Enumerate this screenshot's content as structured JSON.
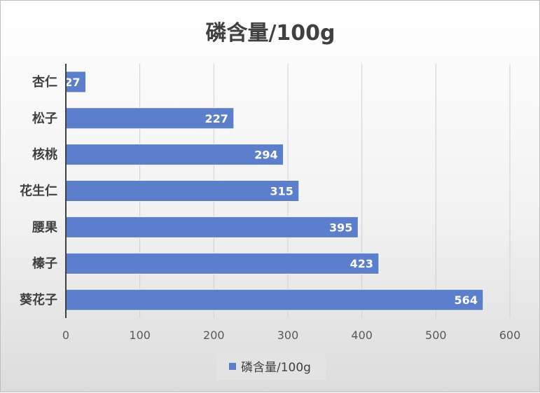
{
  "chart_data": {
    "type": "bar",
    "orientation": "horizontal",
    "title": "磷含量/100g",
    "categories": [
      "杏仁",
      "松子",
      "核桃",
      "花生仁",
      "腰果",
      "榛子",
      "葵花子"
    ],
    "series": [
      {
        "name": "磷含量/100g",
        "values": [
          27,
          227,
          294,
          315,
          395,
          423,
          564
        ]
      }
    ],
    "xlim": [
      0,
      600
    ],
    "xticks": [
      0,
      100,
      200,
      300,
      400,
      500,
      600
    ],
    "grid": true,
    "legend_position": "bottom",
    "bar_color": "#5b7fcc",
    "data_labels": true
  }
}
